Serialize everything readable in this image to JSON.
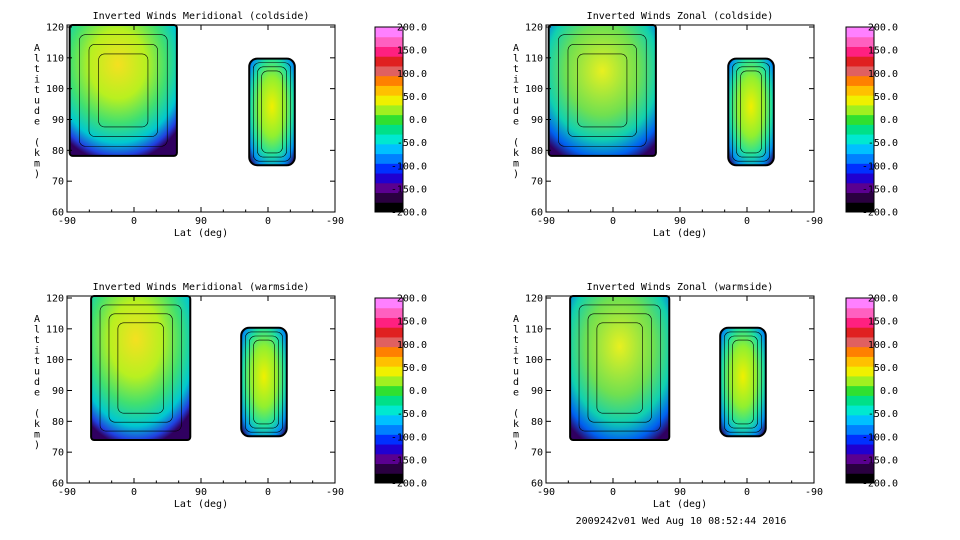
{
  "footer": "2009242v01 Wed Aug 10 08:52:44 2016",
  "colorbar": {
    "labels": [
      "200.0",
      "150.0",
      "100.0",
      "50.0",
      "0.0",
      "-50.0",
      "-100.0",
      "-150.0",
      "-200.0"
    ],
    "colors": [
      "#000000",
      "#2a0040",
      "#5a0090",
      "#2000d0",
      "#0030ff",
      "#0080ff",
      "#00c0ff",
      "#00e8d0",
      "#00e088",
      "#30e030",
      "#a0f020",
      "#f0f000",
      "#ffc000",
      "#ff8000",
      "#e06060",
      "#e02020",
      "#ff2080",
      "#ff60c0",
      "#ff80ff"
    ],
    "min": -200,
    "max": 200
  },
  "chart_data": [
    {
      "type": "heatmap",
      "title": "Inverted Winds Meridional (coldside)",
      "xlabel": "Lat (deg)",
      "ylabel": "Altitude (km)",
      "xticks": [
        "-90",
        "0",
        "90",
        "0",
        "-90"
      ],
      "yticks": [
        "60",
        "70",
        "80",
        "90",
        "100",
        "110",
        "120"
      ],
      "ylim": [
        60,
        120
      ]
    },
    {
      "type": "heatmap",
      "title": "Inverted Winds Zonal (coldside)",
      "xlabel": "Lat (deg)",
      "ylabel": "Altitude (km)",
      "xticks": [
        "-90",
        "0",
        "90",
        "0",
        "-90"
      ],
      "yticks": [
        "60",
        "70",
        "80",
        "90",
        "100",
        "110",
        "120"
      ],
      "ylim": [
        60,
        120
      ]
    },
    {
      "type": "heatmap",
      "title": "Inverted Winds Meridional (warmside)",
      "xlabel": "Lat (deg)",
      "ylabel": "Altitude (km)",
      "xticks": [
        "-90",
        "0",
        "90",
        "0",
        "-90"
      ],
      "yticks": [
        "60",
        "70",
        "80",
        "90",
        "100",
        "110",
        "120"
      ],
      "ylim": [
        60,
        120
      ]
    },
    {
      "type": "heatmap",
      "title": "Inverted Winds Zonal (warmside)",
      "xlabel": "Lat (deg)",
      "ylabel": "Altitude (km)",
      "xticks": [
        "-90",
        "0",
        "90",
        "0",
        "-90"
      ],
      "yticks": [
        "60",
        "70",
        "80",
        "90",
        "100",
        "110",
        "120"
      ],
      "ylim": [
        60,
        120
      ]
    }
  ]
}
